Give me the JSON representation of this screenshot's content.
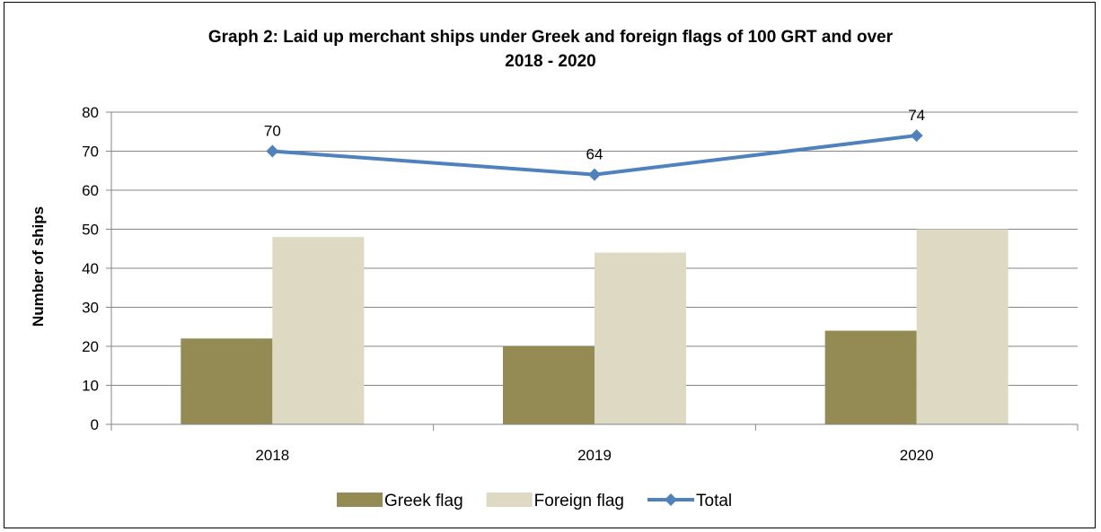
{
  "chart_data": {
    "type": "bar",
    "title_line1": "Graph 2: Laid up merchant ships under Greek and foreign flags of 100 GRT and over",
    "title_line2": "2018 - 2020",
    "xlabel": "",
    "ylabel": "Number of ships",
    "ylim": [
      0,
      80
    ],
    "yticks": [
      0,
      10,
      20,
      30,
      40,
      50,
      60,
      70,
      80
    ],
    "grid": true,
    "legend_position": "bottom",
    "categories": [
      "2018",
      "2019",
      "2020"
    ],
    "series": [
      {
        "name": "Greek flag",
        "kind": "bar",
        "color": "#948A54",
        "values": [
          22,
          20,
          24
        ]
      },
      {
        "name": "Foreign flag",
        "kind": "bar",
        "color": "#DDD9C3",
        "values": [
          48,
          44,
          50
        ]
      },
      {
        "name": "Total",
        "kind": "line",
        "marker": "diamond",
        "color": "#4F81BD",
        "values": [
          70,
          64,
          74
        ],
        "data_labels": [
          "70",
          "64",
          "74"
        ]
      }
    ]
  }
}
